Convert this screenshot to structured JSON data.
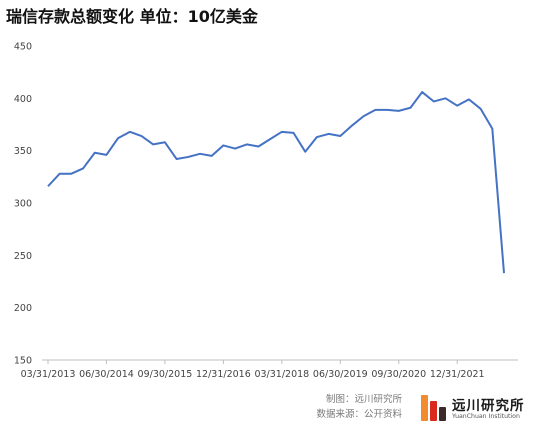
{
  "title": "瑞信存款总额变化 单位：10亿美金",
  "footer": {
    "line1": "制图：远川研究所",
    "line2": "数据来源：公开资料"
  },
  "logo": {
    "name": "远川研究所",
    "subtitle": "YuanChuan Institution",
    "colors": [
      "#f28a2e",
      "#d9291c",
      "#3a2a2a"
    ]
  },
  "chart_data": {
    "type": "line",
    "title": "瑞信存款总额变化 单位：10亿美金",
    "xlabel": "",
    "ylabel": "",
    "ylim": [
      150,
      450
    ],
    "yticks": [
      150,
      200,
      250,
      300,
      350,
      400,
      450
    ],
    "grid": false,
    "legend": "none",
    "line_color": "#4472c4",
    "x_tick_labels": [
      "03/31/2013",
      "06/30/2014",
      "09/30/2015",
      "12/31/2016",
      "03/31/2018",
      "06/30/2019",
      "09/30/2020",
      "12/31/2021"
    ],
    "x": [
      "2013-03-31",
      "2013-06-30",
      "2013-09-30",
      "2013-12-31",
      "2014-03-31",
      "2014-06-30",
      "2014-09-30",
      "2014-12-31",
      "2015-03-31",
      "2015-06-30",
      "2015-09-30",
      "2015-12-31",
      "2016-03-31",
      "2016-06-30",
      "2016-09-30",
      "2016-12-31",
      "2017-03-31",
      "2017-06-30",
      "2017-09-30",
      "2017-12-31",
      "2018-03-31",
      "2018-06-30",
      "2018-09-30",
      "2018-12-31",
      "2019-03-31",
      "2019-06-30",
      "2019-09-30",
      "2019-12-31",
      "2020-03-31",
      "2020-06-30",
      "2020-09-30",
      "2020-12-31",
      "2021-03-31",
      "2021-06-30",
      "2021-09-30",
      "2021-12-31",
      "2022-03-31",
      "2022-06-30",
      "2022-09-30",
      "2022-12-31"
    ],
    "values": [
      316,
      328,
      328,
      333,
      348,
      346,
      362,
      368,
      364,
      356,
      358,
      342,
      344,
      347,
      345,
      355,
      352,
      356,
      354,
      361,
      368,
      367,
      349,
      363,
      366,
      364,
      374,
      383,
      389,
      389,
      388,
      391,
      406,
      397,
      400,
      393,
      399,
      390,
      371,
      233
    ]
  }
}
